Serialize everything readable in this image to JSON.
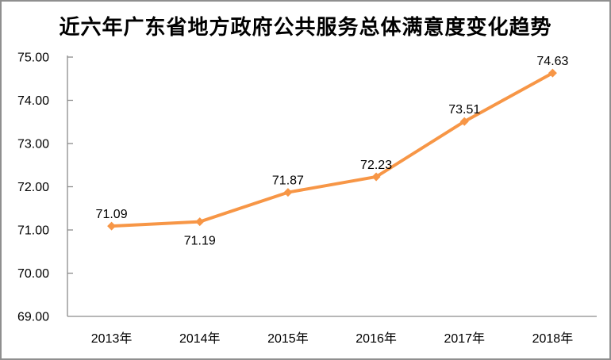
{
  "chart_data": {
    "type": "line",
    "title": "近六年广东省地方政府公共服务总体满意度变化趋势",
    "categories": [
      "2013年",
      "2014年",
      "2015年",
      "2016年",
      "2017年",
      "2018年"
    ],
    "series": [
      {
        "values": [
          71.09,
          71.19,
          71.87,
          72.23,
          73.51,
          74.63
        ],
        "color": "#F79646",
        "marker": "diamond"
      }
    ],
    "data_labels": [
      "71.09",
      "71.19",
      "71.87",
      "72.23",
      "73.51",
      "74.63"
    ],
    "data_label_positions": [
      "above",
      "below",
      "above",
      "above",
      "above",
      "above"
    ],
    "ylim": [
      69,
      75
    ],
    "ytick_step": 1,
    "ytick_labels": [
      "69.00",
      "70.00",
      "71.00",
      "72.00",
      "73.00",
      "74.00",
      "75.00"
    ],
    "xlabel": "",
    "ylabel": "",
    "grid": false,
    "legend": "none",
    "axis_color": "#8C8C8C",
    "label_color": "#000000"
  }
}
